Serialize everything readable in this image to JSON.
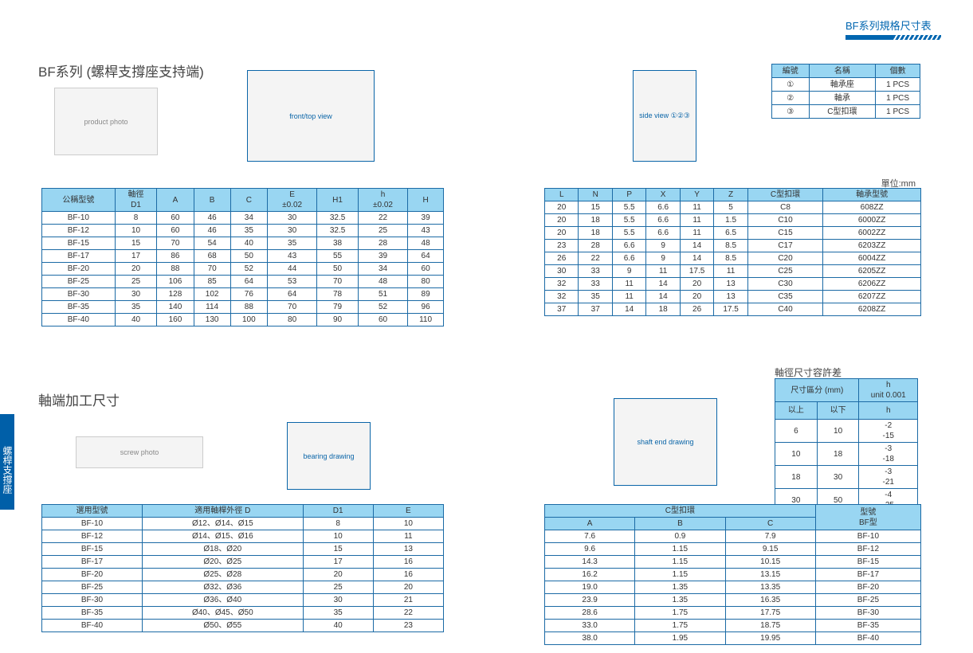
{
  "header": {
    "title": "BF系列規格尺寸表"
  },
  "side_tab": "螺桿支撐座",
  "titles": {
    "t1": "BF系列 (螺桿支撐座支持端)",
    "t2": "軸端加工尺寸",
    "unit": "單位:mm",
    "tol": "軸徑尺寸容許差"
  },
  "diagrams": {
    "photo": "product photo",
    "draw1": "front/top view",
    "draw2": "side view ①②③",
    "screw": "screw photo",
    "bear": "bearing drawing",
    "shaft": "shaft end drawing"
  },
  "parts": {
    "cols": [
      "編號",
      "名稱",
      "個數"
    ],
    "rows": [
      [
        "①",
        "軸承座",
        "1 PCS"
      ],
      [
        "②",
        "軸承",
        "1 PCS"
      ],
      [
        "③",
        "C型扣環",
        "1 PCS"
      ]
    ]
  },
  "dim1": {
    "cols": [
      "公稱型號",
      "軸徑\nD1",
      "A",
      "B",
      "C",
      "E\n±0.02",
      "H1",
      "h\n±0.02",
      "H"
    ],
    "rows": [
      [
        "BF-10",
        "8",
        "60",
        "46",
        "34",
        "30",
        "32.5",
        "22",
        "39"
      ],
      [
        "BF-12",
        "10",
        "60",
        "46",
        "35",
        "30",
        "32.5",
        "25",
        "43"
      ],
      [
        "BF-15",
        "15",
        "70",
        "54",
        "40",
        "35",
        "38",
        "28",
        "48"
      ],
      [
        "BF-17",
        "17",
        "86",
        "68",
        "50",
        "43",
        "55",
        "39",
        "64"
      ],
      [
        "BF-20",
        "20",
        "88",
        "70",
        "52",
        "44",
        "50",
        "34",
        "60"
      ],
      [
        "BF-25",
        "25",
        "106",
        "85",
        "64",
        "53",
        "70",
        "48",
        "80"
      ],
      [
        "BF-30",
        "30",
        "128",
        "102",
        "76",
        "64",
        "78",
        "51",
        "89"
      ],
      [
        "BF-35",
        "35",
        "140",
        "114",
        "88",
        "70",
        "79",
        "52",
        "96"
      ],
      [
        "BF-40",
        "40",
        "160",
        "130",
        "100",
        "80",
        "90",
        "60",
        "110"
      ]
    ]
  },
  "dim2": {
    "cols": [
      "L",
      "N",
      "P",
      "X",
      "Y",
      "Z",
      "C型扣環",
      "軸承型號"
    ],
    "rows": [
      [
        "20",
        "15",
        "5.5",
        "6.6",
        "11",
        "5",
        "C8",
        "608ZZ"
      ],
      [
        "20",
        "18",
        "5.5",
        "6.6",
        "11",
        "1.5",
        "C10",
        "6000ZZ"
      ],
      [
        "20",
        "18",
        "5.5",
        "6.6",
        "11",
        "6.5",
        "C15",
        "6002ZZ"
      ],
      [
        "23",
        "28",
        "6.6",
        "9",
        "14",
        "8.5",
        "C17",
        "6203ZZ"
      ],
      [
        "26",
        "22",
        "6.6",
        "9",
        "14",
        "8.5",
        "C20",
        "6004ZZ"
      ],
      [
        "30",
        "33",
        "9",
        "11",
        "17.5",
        "11",
        "C25",
        "6205ZZ"
      ],
      [
        "32",
        "33",
        "11",
        "14",
        "20",
        "13",
        "C30",
        "6206ZZ"
      ],
      [
        "32",
        "35",
        "11",
        "14",
        "20",
        "13",
        "C35",
        "6207ZZ"
      ],
      [
        "37",
        "37",
        "14",
        "18",
        "26",
        "17.5",
        "C40",
        "6208ZZ"
      ]
    ]
  },
  "tol": {
    "hdr1": [
      "尺寸區分 (mm)",
      "h\nunit 0.001"
    ],
    "hdr2": [
      "以上",
      "以下",
      "h"
    ],
    "rows": [
      [
        "6",
        "10",
        "-2\n-15"
      ],
      [
        "10",
        "18",
        "-3\n-18"
      ],
      [
        "18",
        "30",
        "-3\n-21"
      ],
      [
        "30",
        "50",
        "-4\n-25"
      ]
    ]
  },
  "mach": {
    "cols": [
      "選用型號",
      "適用軸桿外徑 D",
      "D1",
      "E"
    ],
    "rows": [
      [
        "BF-10",
        "Ø12、Ø14、Ø15",
        "8",
        "10"
      ],
      [
        "BF-12",
        "Ø14、Ø15、Ø16",
        "10",
        "11"
      ],
      [
        "BF-15",
        "Ø18、Ø20",
        "15",
        "13"
      ],
      [
        "BF-17",
        "Ø20、Ø25",
        "17",
        "16"
      ],
      [
        "BF-20",
        "Ø25、Ø28",
        "20",
        "16"
      ],
      [
        "BF-25",
        "Ø32、Ø36",
        "25",
        "20"
      ],
      [
        "BF-30",
        "Ø36、Ø40",
        "30",
        "21"
      ],
      [
        "BF-35",
        "Ø40、Ø45、Ø50",
        "35",
        "22"
      ],
      [
        "BF-40",
        "Ø50、Ø55",
        "40",
        "23"
      ]
    ]
  },
  "ring": {
    "hdr1": [
      "C型扣環",
      "型號\nBF型"
    ],
    "hdr2": [
      "A",
      "B",
      "C"
    ],
    "rows": [
      [
        "7.6",
        "0.9",
        "7.9",
        "BF-10"
      ],
      [
        "9.6",
        "1.15",
        "9.15",
        "BF-12"
      ],
      [
        "14.3",
        "1.15",
        "10.15",
        "BF-15"
      ],
      [
        "16.2",
        "1.15",
        "13.15",
        "BF-17"
      ],
      [
        "19.0",
        "1.35",
        "13.35",
        "BF-20"
      ],
      [
        "23.9",
        "1.35",
        "16.35",
        "BF-25"
      ],
      [
        "28.6",
        "1.75",
        "17.75",
        "BF-30"
      ],
      [
        "33.0",
        "1.75",
        "18.75",
        "BF-35"
      ],
      [
        "38.0",
        "1.95",
        "19.95",
        "BF-40"
      ]
    ]
  }
}
